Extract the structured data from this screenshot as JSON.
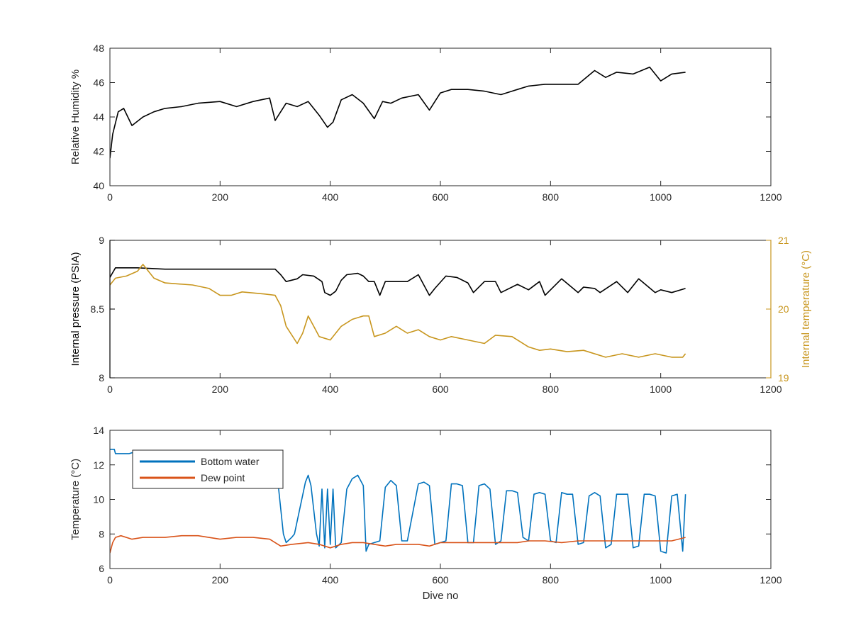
{
  "chart_data": [
    {
      "type": "line",
      "panel": "top",
      "xlabel": "",
      "ylabel": "Relative Humidity %",
      "xlim": [
        0,
        1200
      ],
      "ylim": [
        40,
        48
      ],
      "xticks": [
        0,
        200,
        400,
        600,
        800,
        1000,
        1200
      ],
      "yticks": [
        40,
        42,
        44,
        46,
        48
      ],
      "grid": false,
      "series": [
        {
          "color": "#000000",
          "x": [
            0,
            5,
            15,
            25,
            40,
            60,
            80,
            100,
            130,
            160,
            200,
            230,
            260,
            290,
            300,
            320,
            340,
            360,
            380,
            395,
            405,
            420,
            440,
            460,
            480,
            495,
            510,
            530,
            560,
            580,
            600,
            620,
            650,
            680,
            710,
            740,
            760,
            790,
            820,
            850,
            880,
            900,
            920,
            950,
            980,
            1000,
            1020,
            1045
          ],
          "y": [
            41.6,
            43.0,
            44.3,
            44.5,
            43.5,
            44.0,
            44.3,
            44.5,
            44.6,
            44.8,
            44.9,
            44.6,
            44.9,
            45.1,
            43.8,
            44.8,
            44.6,
            44.9,
            44.1,
            43.4,
            43.7,
            45.0,
            45.3,
            44.8,
            43.9,
            44.9,
            44.8,
            45.1,
            45.3,
            44.4,
            45.4,
            45.6,
            45.6,
            45.5,
            45.3,
            45.6,
            45.8,
            45.9,
            45.9,
            45.9,
            46.7,
            46.3,
            46.6,
            46.5,
            46.9,
            46.1,
            46.5,
            46.6
          ]
        }
      ]
    },
    {
      "type": "line",
      "panel": "middle",
      "xlabel": "",
      "ylabel": "Internal pressure (PSIA)",
      "ylabel_right": "Internal temperature (°C)",
      "xlim": [
        0,
        1200
      ],
      "ylim": [
        8,
        9
      ],
      "ylim_right": [
        19,
        21
      ],
      "xticks": [
        0,
        200,
        400,
        600,
        800,
        1000,
        1200
      ],
      "yticks": [
        8,
        8.5,
        9
      ],
      "yticks_right": [
        19,
        20,
        21
      ],
      "right_axis_color": "#c8961e",
      "grid": false,
      "series": [
        {
          "axis": "left",
          "color": "#000000",
          "x": [
            0,
            10,
            50,
            100,
            150,
            200,
            250,
            300,
            310,
            320,
            340,
            350,
            370,
            385,
            390,
            400,
            410,
            420,
            430,
            450,
            460,
            470,
            480,
            490,
            500,
            520,
            540,
            560,
            580,
            590,
            610,
            630,
            650,
            660,
            680,
            700,
            710,
            740,
            760,
            780,
            790,
            820,
            850,
            860,
            880,
            890,
            920,
            940,
            960,
            990,
            1000,
            1020,
            1045
          ],
          "y": [
            8.73,
            8.8,
            8.8,
            8.79,
            8.79,
            8.79,
            8.79,
            8.79,
            8.75,
            8.7,
            8.72,
            8.75,
            8.74,
            8.7,
            8.62,
            8.6,
            8.63,
            8.71,
            8.75,
            8.76,
            8.74,
            8.7,
            8.7,
            8.6,
            8.7,
            8.7,
            8.7,
            8.75,
            8.6,
            8.65,
            8.74,
            8.73,
            8.69,
            8.62,
            8.7,
            8.7,
            8.62,
            8.68,
            8.64,
            8.7,
            8.6,
            8.72,
            8.62,
            8.66,
            8.65,
            8.62,
            8.7,
            8.62,
            8.72,
            8.62,
            8.64,
            8.62,
            8.65
          ]
        },
        {
          "axis": "right",
          "color": "#c8961e",
          "x": [
            0,
            10,
            30,
            50,
            60,
            80,
            100,
            150,
            180,
            200,
            220,
            240,
            280,
            300,
            310,
            320,
            340,
            350,
            360,
            370,
            380,
            400,
            420,
            440,
            460,
            470,
            480,
            500,
            520,
            540,
            560,
            580,
            600,
            620,
            650,
            680,
            700,
            730,
            760,
            780,
            800,
            830,
            860,
            900,
            930,
            960,
            990,
            1020,
            1040,
            1045
          ],
          "y": [
            20.35,
            20.45,
            20.48,
            20.55,
            20.65,
            20.45,
            20.38,
            20.35,
            20.3,
            20.2,
            20.2,
            20.25,
            20.22,
            20.2,
            20.05,
            19.75,
            19.5,
            19.65,
            19.9,
            19.75,
            19.6,
            19.55,
            19.75,
            19.85,
            19.9,
            19.9,
            19.6,
            19.65,
            19.75,
            19.65,
            19.7,
            19.6,
            19.55,
            19.6,
            19.55,
            19.5,
            19.62,
            19.6,
            19.45,
            19.4,
            19.42,
            19.38,
            19.4,
            19.3,
            19.35,
            19.3,
            19.35,
            19.3,
            19.3,
            19.35
          ]
        }
      ]
    },
    {
      "type": "line",
      "panel": "bottom",
      "xlabel": "Dive no",
      "ylabel": "Temperature (°C)",
      "xlim": [
        0,
        1200
      ],
      "ylim": [
        6,
        14
      ],
      "xticks": [
        0,
        200,
        400,
        600,
        800,
        1000,
        1200
      ],
      "yticks": [
        6,
        8,
        10,
        12,
        14
      ],
      "grid": false,
      "legend": "top-left",
      "series": [
        {
          "name": "Bottom water",
          "color": "#0072bd",
          "x": [
            0,
            8,
            10,
            35,
            40,
            300,
            305,
            315,
            320,
            330,
            335,
            355,
            360,
            365,
            375,
            380,
            385,
            390,
            395,
            400,
            405,
            410,
            420,
            430,
            440,
            450,
            460,
            465,
            470,
            490,
            500,
            510,
            520,
            530,
            540,
            560,
            570,
            580,
            590,
            610,
            620,
            630,
            640,
            650,
            660,
            670,
            680,
            690,
            700,
            710,
            720,
            730,
            740,
            750,
            760,
            770,
            780,
            790,
            800,
            810,
            820,
            830,
            840,
            850,
            860,
            870,
            880,
            890,
            900,
            910,
            920,
            930,
            940,
            950,
            960,
            970,
            980,
            990,
            1000,
            1010,
            1020,
            1030,
            1040,
            1045
          ],
          "y": [
            12.9,
            12.9,
            12.65,
            12.65,
            12.7,
            12.7,
            11.0,
            8.0,
            7.5,
            7.8,
            8.0,
            11.0,
            11.4,
            10.8,
            8.0,
            7.3,
            10.6,
            7.2,
            10.6,
            7.4,
            10.6,
            7.2,
            7.5,
            10.6,
            11.2,
            11.4,
            10.8,
            7.0,
            7.4,
            7.6,
            10.7,
            11.1,
            10.8,
            7.6,
            7.6,
            10.9,
            11.0,
            10.8,
            7.4,
            7.6,
            10.9,
            10.9,
            10.8,
            7.5,
            7.5,
            10.8,
            10.9,
            10.6,
            7.4,
            7.6,
            10.5,
            10.5,
            10.4,
            7.8,
            7.6,
            10.3,
            10.4,
            10.3,
            7.6,
            7.5,
            10.4,
            10.3,
            10.3,
            7.4,
            7.5,
            10.2,
            10.4,
            10.2,
            7.2,
            7.4,
            10.3,
            10.3,
            10.3,
            7.2,
            7.3,
            10.3,
            10.3,
            10.2,
            7.0,
            6.9,
            10.2,
            10.3,
            7.0,
            10.3
          ]
        },
        {
          "name": "Dew point",
          "color": "#d95319",
          "x": [
            0,
            5,
            10,
            20,
            40,
            60,
            80,
            100,
            130,
            160,
            200,
            230,
            260,
            290,
            300,
            310,
            330,
            360,
            380,
            400,
            420,
            440,
            460,
            480,
            500,
            520,
            560,
            580,
            600,
            620,
            650,
            680,
            710,
            740,
            760,
            790,
            820,
            850,
            880,
            900,
            920,
            950,
            980,
            1000,
            1020,
            1045
          ],
          "y": [
            6.9,
            7.5,
            7.8,
            7.9,
            7.7,
            7.8,
            7.8,
            7.8,
            7.9,
            7.9,
            7.7,
            7.8,
            7.8,
            7.7,
            7.5,
            7.3,
            7.4,
            7.5,
            7.4,
            7.2,
            7.4,
            7.5,
            7.5,
            7.4,
            7.3,
            7.4,
            7.4,
            7.3,
            7.5,
            7.5,
            7.5,
            7.5,
            7.5,
            7.5,
            7.6,
            7.6,
            7.5,
            7.6,
            7.6,
            7.6,
            7.6,
            7.6,
            7.6,
            7.6,
            7.6,
            7.8
          ]
        }
      ]
    }
  ]
}
